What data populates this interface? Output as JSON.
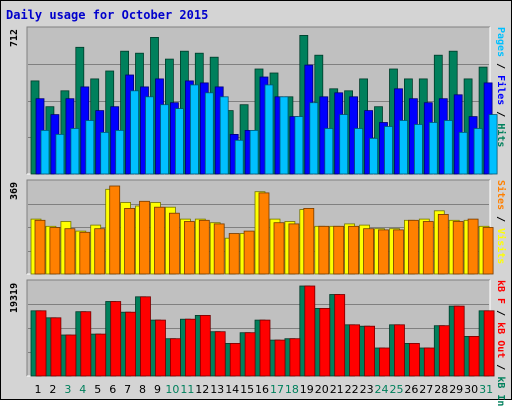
{
  "chart_data": {
    "title": "Daily usage for October 2015",
    "type": "bar",
    "categories": [
      "1",
      "2",
      "3",
      "4",
      "5",
      "6",
      "7",
      "8",
      "9",
      "10",
      "11",
      "12",
      "13",
      "14",
      "15",
      "16",
      "17",
      "18",
      "19",
      "20",
      "21",
      "22",
      "23",
      "24",
      "25",
      "26",
      "27",
      "28",
      "29",
      "30",
      "31"
    ],
    "weekend_days": [
      "3",
      "4",
      "10",
      "11",
      "17",
      "18",
      "24",
      "25",
      "31"
    ],
    "colors": {
      "hits": "#00805c",
      "files": "#0000ff",
      "pages": "#00c0ff",
      "visits": "#ffff00",
      "sites": "#ff8000",
      "kb_in": "#00805c",
      "kb_out": "#ff0000",
      "weekday_label": "#000000",
      "weekend_label": "#00805c",
      "title": "#0000cc"
    },
    "panels": [
      {
        "name": "hits-files-pages",
        "scale_label": "712",
        "ymax": 712,
        "legend": [
          {
            "text": "Pages",
            "color": "#00c0ff"
          },
          {
            "text": " / ",
            "color": "#000000"
          },
          {
            "text": "Files",
            "color": "#0000ff"
          },
          {
            "text": " / ",
            "color": "#000000"
          },
          {
            "text": "Hits",
            "color": "#00805c"
          }
        ],
        "series": [
          {
            "name": "Hits",
            "color": "#00805c",
            "values": [
              470,
              340,
              420,
              640,
              480,
              520,
              620,
              610,
              690,
              580,
              620,
              610,
              590,
              320,
              350,
              530,
              510,
              390,
              700,
              600,
              430,
              420,
              480,
              340,
              530,
              480,
              480,
              600,
              620,
              480,
              540
            ]
          },
          {
            "name": "Files",
            "color": "#0000ff",
            "values": [
              380,
              300,
              380,
              440,
              320,
              340,
              500,
              440,
              480,
              360,
              470,
              460,
              440,
              200,
              220,
              490,
              390,
              290,
              550,
              390,
              410,
              390,
              320,
              260,
              430,
              380,
              360,
              380,
              400,
              290,
              460
            ]
          },
          {
            "name": "Pages",
            "color": "#00c0ff",
            "values": [
              220,
              200,
              230,
              270,
              210,
              220,
              420,
              390,
              350,
              330,
              450,
              410,
              390,
              170,
              220,
              450,
              390,
              290,
              360,
              230,
              300,
              230,
              180,
              240,
              270,
              250,
              260,
              270,
              210,
              230,
              300
            ]
          }
        ]
      },
      {
        "name": "visits-sites",
        "scale_label": "369",
        "ymax": 369,
        "legend": [
          {
            "text": "Sites",
            "color": "#ff8000"
          },
          {
            "text": " / ",
            "color": "#000000"
          },
          {
            "text": "Visits",
            "color": "#ffff00"
          }
        ],
        "series": [
          {
            "name": "Visits",
            "color": "#ffff00",
            "values": [
              230,
              200,
              220,
              180,
              205,
              355,
              300,
              285,
              300,
              280,
              230,
              230,
              215,
              150,
              170,
              345,
              230,
              220,
              270,
              200,
              200,
              210,
              205,
              190,
              190,
              225,
              230,
              265,
              225,
              225,
              200
            ]
          },
          {
            "name": "Sites",
            "color": "#ff8000",
            "values": [
              225,
              195,
              190,
              175,
              190,
              369,
              275,
              305,
              280,
              255,
              220,
              225,
              210,
              170,
              180,
              340,
              215,
              210,
              275,
              200,
              200,
              200,
              190,
              185,
              185,
              225,
              220,
              250,
              220,
              230,
              195
            ]
          }
        ]
      },
      {
        "name": "kb",
        "scale_label": "19319",
        "ymax": 19319,
        "legend": [
          {
            "text": "kB F",
            "color": "#ff0000"
          },
          {
            "text": " / ",
            "color": "#000000"
          },
          {
            "text": "kB Out",
            "color": "#ff0000"
          },
          {
            "text": " / ",
            "color": "#000000"
          },
          {
            "text": "kB In",
            "color": "#00805c"
          }
        ],
        "series": [
          {
            "name": "kB In",
            "color": "#00805c",
            "values": [
              14000,
              12500,
              8800,
              13800,
              9000,
              16000,
              13700,
              17000,
              12000,
              8000,
              12200,
              13000,
              9500,
              7000,
              9300,
              12000,
              7700,
              8000,
              19319,
              14500,
              17500,
              11000,
              10700,
              6000,
              11000,
              7000,
              6000,
              10800,
              15000,
              8500,
              14000
            ]
          },
          {
            "name": "kB Out",
            "color": "#ff0000",
            "values": [
              14000,
              12500,
              8800,
              13800,
              9000,
              16000,
              13700,
              17000,
              12000,
              8000,
              12200,
              13000,
              9500,
              7000,
              9300,
              12000,
              7700,
              8000,
              19319,
              14500,
              17500,
              11000,
              10700,
              6000,
              11000,
              7000,
              6000,
              10800,
              15000,
              8500,
              14000
            ]
          }
        ]
      }
    ]
  }
}
